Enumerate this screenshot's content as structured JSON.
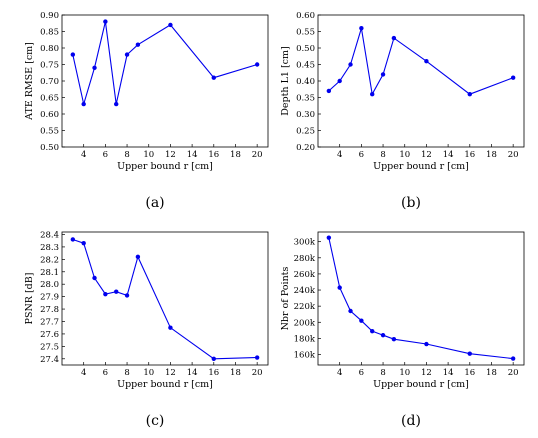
{
  "chart_data": [
    {
      "type": "line",
      "xlabel": "Upper bound r [cm]",
      "ylabel": "ATE RMSE [cm]",
      "caption": "(a)",
      "x": [
        3,
        4,
        5,
        6,
        7,
        8,
        9,
        12,
        16,
        20
      ],
      "y": [
        0.78,
        0.63,
        0.74,
        0.88,
        0.63,
        0.78,
        0.81,
        0.87,
        0.71,
        0.75
      ],
      "xlim": [
        2,
        21
      ],
      "ylim": [
        0.5,
        0.9
      ],
      "xticks": [
        4,
        6,
        8,
        10,
        12,
        14,
        16,
        18,
        20
      ],
      "yticks": [
        0.5,
        0.55,
        0.6,
        0.65,
        0.7,
        0.75,
        0.8,
        0.85,
        0.9
      ],
      "xtick_labels": [
        "4",
        "6",
        "8",
        "10",
        "12",
        "14",
        "16",
        "18",
        "20"
      ],
      "ytick_labels": [
        "0.50",
        "0.55",
        "0.60",
        "0.65",
        "0.70",
        "0.75",
        "0.80",
        "0.85",
        "0.90"
      ],
      "color": "#0000ee"
    },
    {
      "type": "line",
      "xlabel": "Upper bound r [cm]",
      "ylabel": "Depth L1 [cm]",
      "caption": "(b)",
      "x": [
        3,
        4,
        5,
        6,
        7,
        8,
        9,
        12,
        16,
        20
      ],
      "y": [
        0.37,
        0.4,
        0.45,
        0.56,
        0.36,
        0.42,
        0.53,
        0.46,
        0.36,
        0.41
      ],
      "xlim": [
        2,
        21
      ],
      "ylim": [
        0.2,
        0.6
      ],
      "xticks": [
        4,
        6,
        8,
        10,
        12,
        14,
        16,
        18,
        20
      ],
      "yticks": [
        0.2,
        0.25,
        0.3,
        0.35,
        0.4,
        0.45,
        0.5,
        0.55,
        0.6
      ],
      "xtick_labels": [
        "4",
        "6",
        "8",
        "10",
        "12",
        "14",
        "16",
        "18",
        "20"
      ],
      "ytick_labels": [
        "0.20",
        "0.25",
        "0.30",
        "0.35",
        "0.40",
        "0.45",
        "0.50",
        "0.55",
        "0.60"
      ],
      "color": "#0000ee"
    },
    {
      "type": "line",
      "xlabel": "Upper bound r [cm]",
      "ylabel": "PSNR [dB]",
      "caption": "(c)",
      "x": [
        3,
        4,
        5,
        6,
        7,
        8,
        9,
        12,
        16,
        20
      ],
      "y": [
        28.36,
        28.33,
        28.05,
        27.92,
        27.94,
        27.91,
        28.22,
        27.65,
        27.4,
        27.41
      ],
      "xlim": [
        2,
        21
      ],
      "ylim": [
        27.35,
        28.42
      ],
      "xticks": [
        4,
        6,
        8,
        10,
        12,
        14,
        16,
        18,
        20
      ],
      "yticks": [
        27.4,
        27.5,
        27.6,
        27.7,
        27.8,
        27.9,
        28.0,
        28.1,
        28.2,
        28.3,
        28.4
      ],
      "xtick_labels": [
        "4",
        "6",
        "8",
        "10",
        "12",
        "14",
        "16",
        "18",
        "20"
      ],
      "ytick_labels": [
        "27.4",
        "27.5",
        "27.6",
        "27.7",
        "27.8",
        "27.9",
        "28.0",
        "28.1",
        "28.2",
        "28.3",
        "28.4"
      ],
      "color": "#0000ee"
    },
    {
      "type": "line",
      "xlabel": "Upper bound r [cm]",
      "ylabel": "Nbr of Points",
      "caption": "(d)",
      "x": [
        3,
        4,
        5,
        6,
        7,
        8,
        9,
        12,
        16,
        20
      ],
      "y": [
        305000,
        243000,
        214000,
        202000,
        189000,
        184000,
        179000,
        173000,
        161000,
        155000
      ],
      "xlim": [
        2,
        21
      ],
      "ylim": [
        147000,
        312000
      ],
      "xticks": [
        4,
        6,
        8,
        10,
        12,
        14,
        16,
        18,
        20
      ],
      "yticks": [
        160000,
        180000,
        200000,
        220000,
        240000,
        260000,
        280000,
        300000
      ],
      "xtick_labels": [
        "4",
        "6",
        "8",
        "10",
        "12",
        "14",
        "16",
        "18",
        "20"
      ],
      "ytick_labels": [
        "160k",
        "180k",
        "200k",
        "220k",
        "240k",
        "260k",
        "280k",
        "300k"
      ],
      "color": "#0000ee"
    }
  ]
}
